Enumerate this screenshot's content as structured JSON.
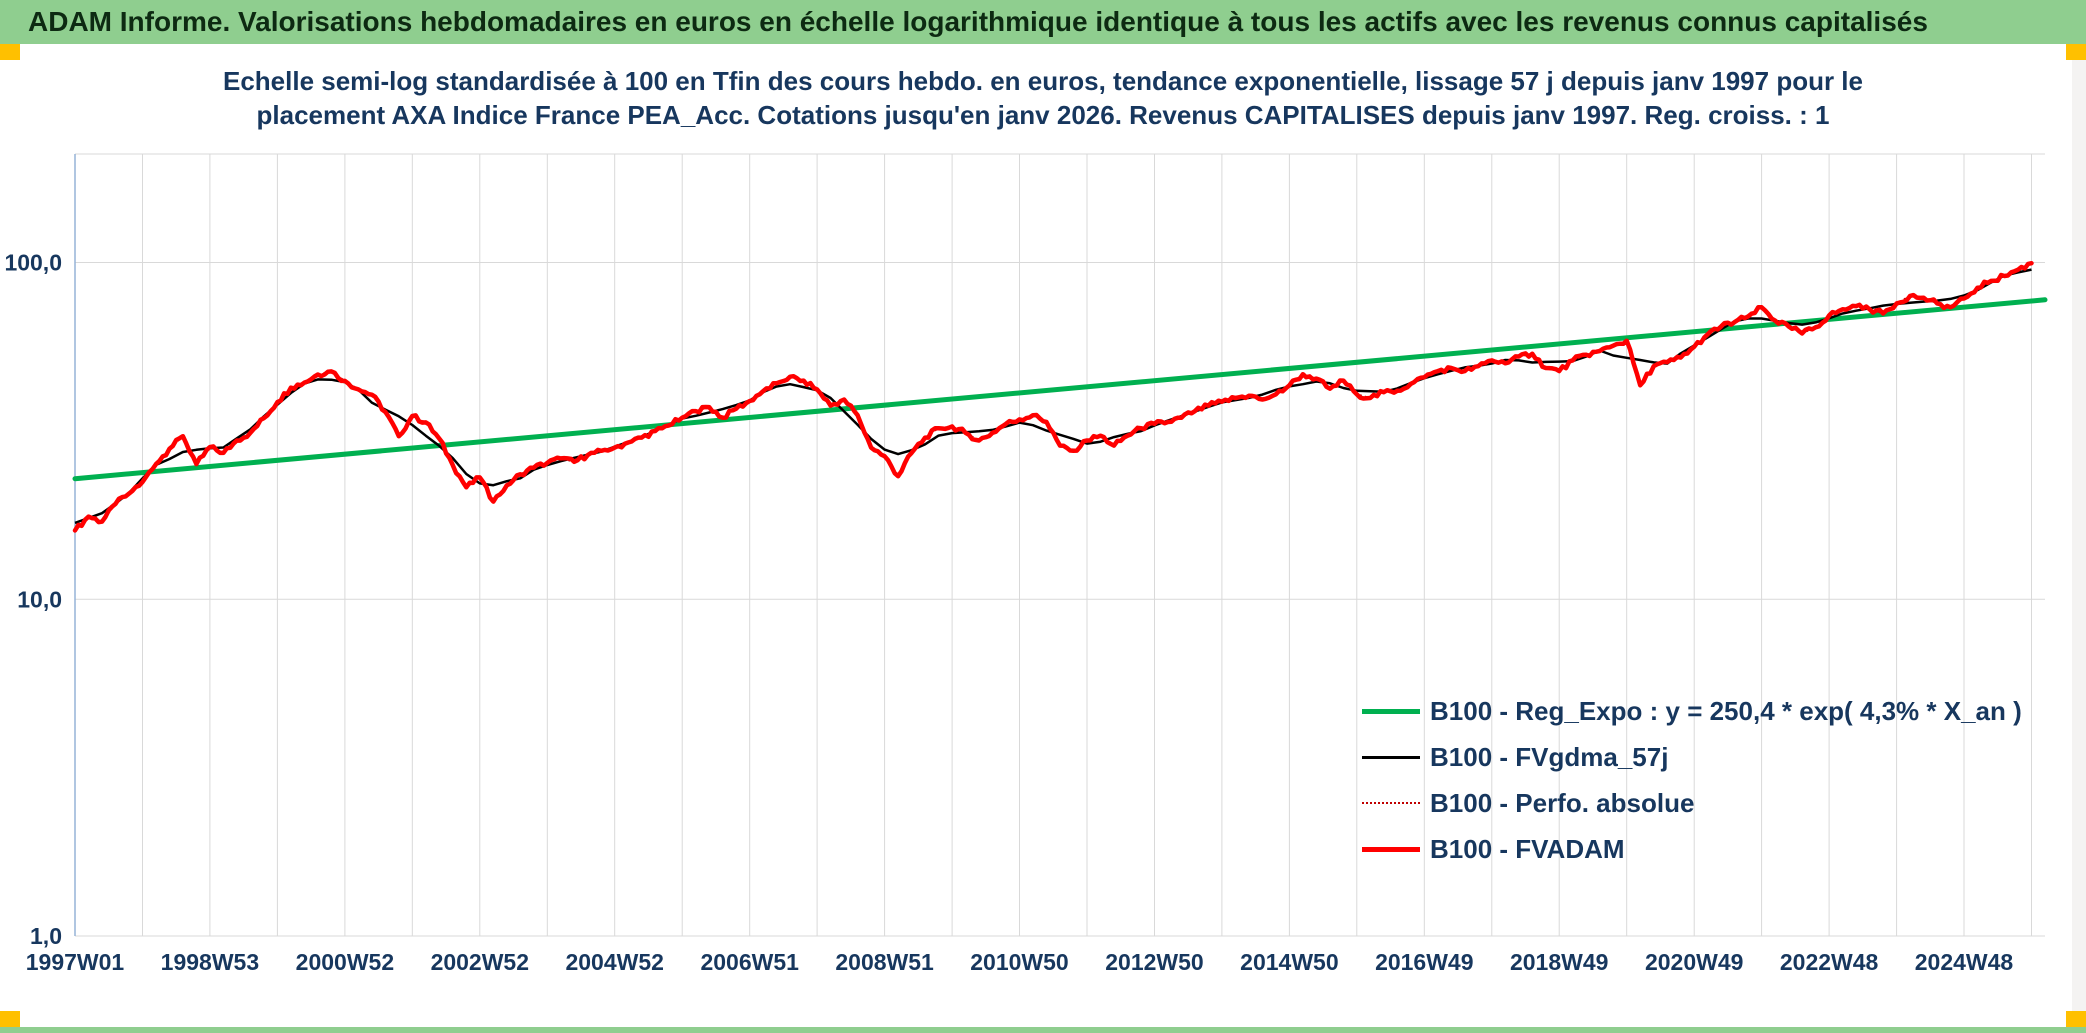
{
  "header": {
    "title": "ADAM Informe. Valorisations hebdomadaires en euros en échelle logarithmique identique à tous les actifs avec les revenus connus capitalisés",
    "bg_color": "#8FCE8F",
    "accent_color": "#FFC000"
  },
  "chart_data": {
    "type": "line",
    "title_line1": "Echelle semi-log standardisée à 100 en Tfin des cours hebdo. en euros, tendance exponentielle, lissage 57 j depuis janv 1997 pour le",
    "title_line2": "placement AXA Indice France PEA_Acc. Cotations jusqu'en janv 2026. Revenus CAPITALISES depuis janv 1997. Reg. croiss. : 1",
    "y_axis": {
      "scale": "log",
      "range": [
        1,
        210
      ],
      "ticks": [
        {
          "label": "100,0",
          "value": 100
        },
        {
          "label": "10,0",
          "value": 10
        },
        {
          "label": "1,0",
          "value": 1
        }
      ]
    },
    "x_axis": {
      "range": [
        1997.0,
        2026.2
      ],
      "gridline_step_years": 1,
      "ticks": [
        {
          "label": "1997W01",
          "x": 1997.0
        },
        {
          "label": "1998W53",
          "x": 1999.0
        },
        {
          "label": "2000W52",
          "x": 2001.0
        },
        {
          "label": "2002W52",
          "x": 2003.0
        },
        {
          "label": "2004W52",
          "x": 2005.0
        },
        {
          "label": "2006W51",
          "x": 2007.0
        },
        {
          "label": "2008W51",
          "x": 2009.0
        },
        {
          "label": "2010W50",
          "x": 2011.0
        },
        {
          "label": "2012W50",
          "x": 2013.0
        },
        {
          "label": "2014W50",
          "x": 2015.0
        },
        {
          "label": "2016W49",
          "x": 2017.0
        },
        {
          "label": "2018W49",
          "x": 2019.0
        },
        {
          "label": "2020W49",
          "x": 2021.0
        },
        {
          "label": "2022W48",
          "x": 2023.0
        },
        {
          "label": "2024W48",
          "x": 2025.0
        }
      ]
    },
    "legend": {
      "items": [
        {
          "label": "B100 - Reg_Expo : y = 250,4 * exp( 4,3% *  X_an )",
          "color": "#00B050",
          "style": "solid",
          "weight": 5
        },
        {
          "label": "B100 - FVgdma_57j",
          "color": "#000000",
          "style": "solid",
          "weight": 3
        },
        {
          "label": "B100 - Perfo. absolue",
          "color": "#C00000",
          "style": "dotted",
          "weight": 2
        },
        {
          "label": "B100 - FVADAM",
          "color": "#FF0000",
          "style": "solid",
          "weight": 5
        }
      ]
    },
    "series": [
      {
        "name": "B100 - Reg_Expo : y = 250,4 * exp( 4,3% *  X_an )",
        "type": "regression",
        "color": "#00B050",
        "width": 5,
        "x_start": 1997.0,
        "y_start": 22.8,
        "x_end": 2026.2,
        "y_end": 77.5
      },
      {
        "name": "B100 - FVgdma_57j",
        "type": "smoothed",
        "color": "#000000",
        "width": 2.5,
        "source": "B100 - FVADAM",
        "window": 5
      },
      {
        "name": "B100 - Perfo. absolue",
        "type": "dotted",
        "color": "#C00000",
        "width": 1.8,
        "source": "B100 - FVADAM"
      },
      {
        "name": "B100 - FVADAM",
        "type": "main",
        "color": "#FF0000",
        "width": 4.5,
        "x_start": 1997.0,
        "x_step": 0.2,
        "values": [
          16.0,
          17.6,
          17.0,
          19.2,
          20.6,
          22.3,
          25.2,
          28.0,
          30.5,
          25.2,
          28.3,
          27.2,
          29.6,
          31.2,
          34.5,
          38.5,
          42.5,
          44.0,
          46.5,
          47.5,
          44.5,
          42.0,
          40.5,
          36.0,
          30.5,
          35.0,
          33.5,
          30.0,
          25.0,
          21.5,
          23.0,
          19.5,
          21.8,
          23.5,
          24.6,
          25.4,
          26.2,
          25.6,
          26.8,
          27.6,
          28.2,
          29.2,
          30.2,
          31.6,
          32.8,
          34.6,
          36.2,
          37.2,
          34.6,
          36.8,
          38.8,
          41.5,
          43.8,
          45.8,
          44.6,
          42.0,
          37.6,
          39.2,
          35.2,
          28.2,
          26.6,
          23.2,
          27.2,
          30.2,
          32.2,
          32.6,
          31.2,
          29.6,
          31.2,
          33.2,
          34.2,
          35.2,
          33.6,
          28.6,
          27.6,
          29.6,
          30.6,
          28.6,
          30.6,
          32.2,
          33.2,
          33.6,
          34.6,
          36.2,
          37.6,
          38.6,
          39.6,
          40.2,
          39.2,
          40.6,
          43.2,
          46.6,
          45.2,
          42.2,
          44.6,
          40.6,
          39.6,
          41.2,
          41.6,
          43.6,
          45.6,
          47.6,
          48.6,
          47.6,
          49.2,
          51.2,
          50.2,
          52.6,
          53.6,
          48.6,
          47.6,
          51.2,
          53.2,
          54.6,
          56.6,
          58.6,
          43.2,
          49.2,
          50.6,
          52.2,
          56.2,
          61.2,
          64.6,
          66.6,
          69.2,
          73.6,
          67.2,
          64.6,
          61.6,
          64.2,
          69.6,
          72.6,
          74.2,
          72.6,
          70.6,
          75.6,
          79.6,
          78.6,
          75.6,
          73.6,
          78.2,
          84.2,
          88.2,
          91.2,
          95.2,
          99.5
        ]
      }
    ]
  }
}
